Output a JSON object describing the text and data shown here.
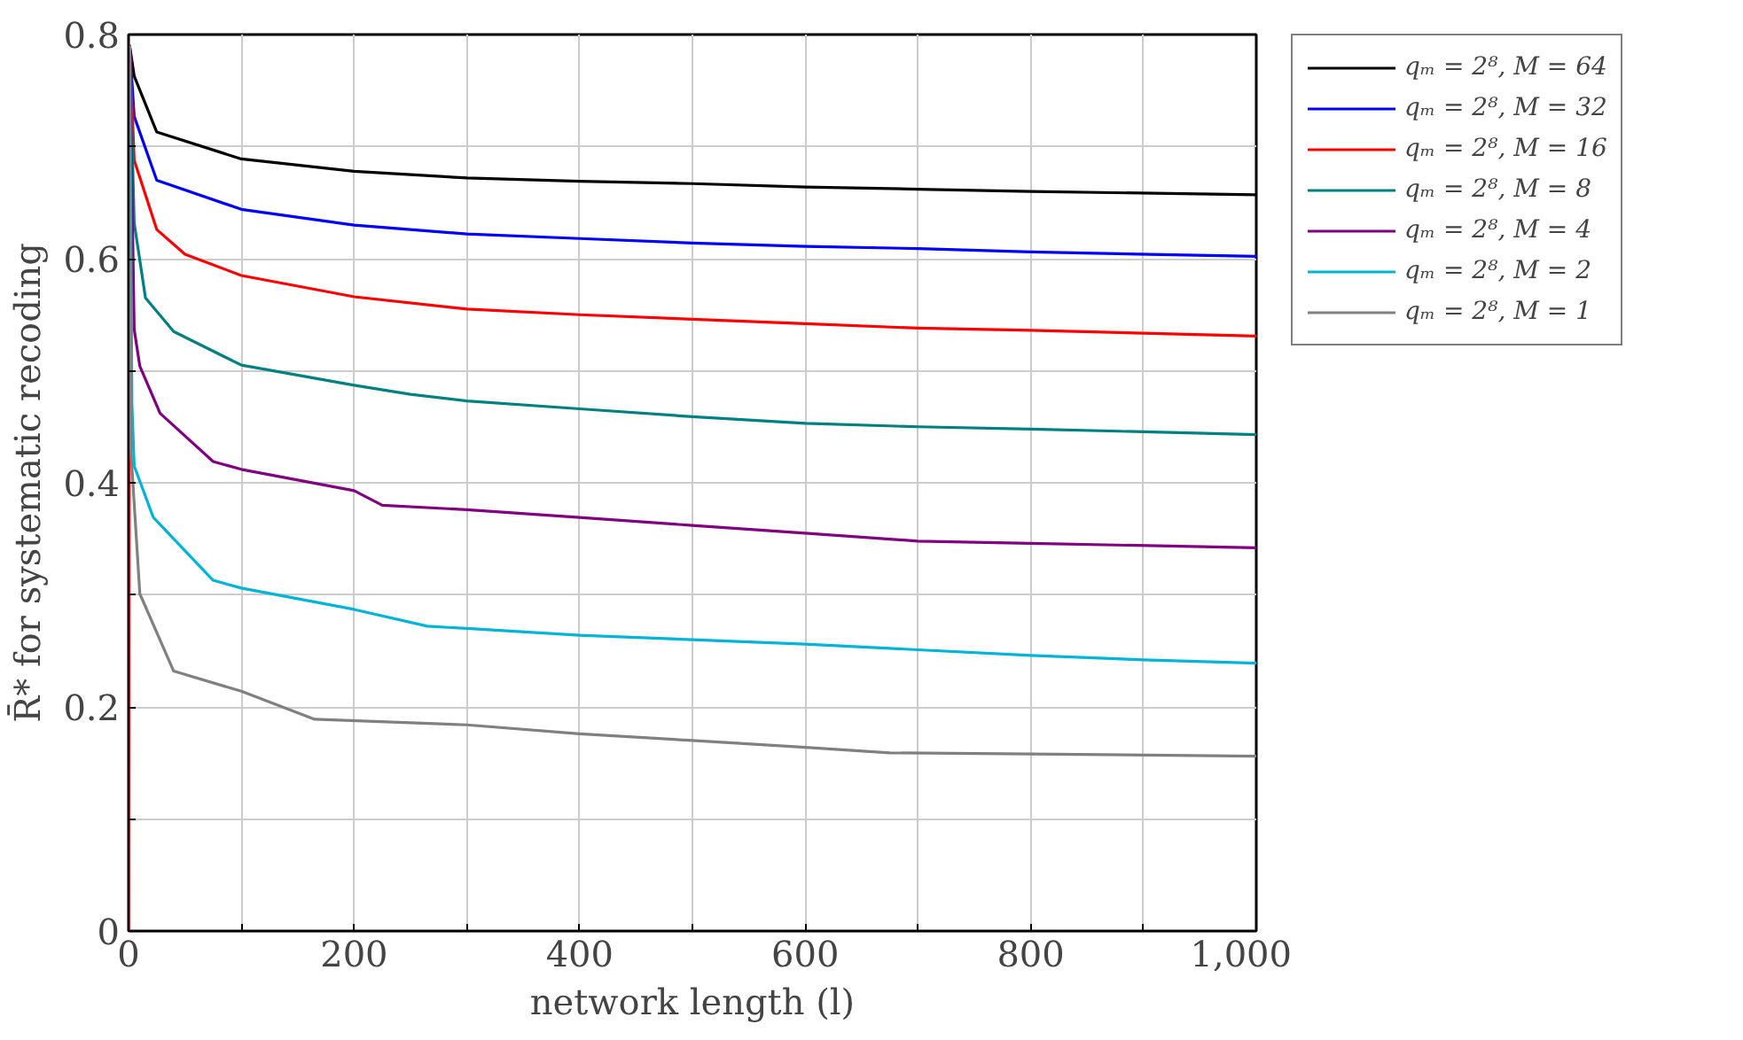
{
  "chart_data": {
    "type": "line",
    "xlabel": "network length (l)",
    "ylabel": "R̄* for systematic recoding",
    "xlim": [
      0,
      1000
    ],
    "ylim": [
      0,
      0.8
    ],
    "xticks": [
      0,
      {
        "value": 100,
        "label": null
      },
      200,
      {
        "value": 300,
        "label": null
      },
      400,
      {
        "value": 500,
        "label": null
      },
      600,
      {
        "value": 700,
        "label": null
      },
      800,
      {
        "value": 900,
        "label": null
      },
      {
        "value": 1000,
        "label": "1,000"
      }
    ],
    "yticks": [
      0,
      {
        "value": 0.1,
        "label": null
      },
      0.2,
      {
        "value": 0.3,
        "label": null
      },
      0.4,
      {
        "value": 0.5,
        "label": null
      },
      0.6,
      {
        "value": 0.7,
        "label": null
      },
      0.8
    ],
    "grid": true,
    "legend": "right",
    "marker": "none",
    "line_style": "solid",
    "series": [
      {
        "name": "qₘ = 2⁸, M = 64",
        "color": "#000000",
        "x": [
          1,
          5,
          25,
          100,
          200,
          300,
          400,
          500,
          600,
          700,
          800,
          1000
        ],
        "values": [
          0.79,
          0.763,
          0.713,
          0.689,
          0.678,
          0.672,
          0.669,
          0.667,
          0.664,
          0.662,
          0.66,
          0.657
        ]
      },
      {
        "name": "qₘ = 2⁸, M = 32",
        "color": "#0000ff",
        "x": [
          1,
          5,
          25,
          100,
          200,
          300,
          400,
          500,
          600,
          700,
          800,
          1000
        ],
        "values": [
          0.79,
          0.727,
          0.67,
          0.644,
          0.63,
          0.622,
          0.618,
          0.614,
          0.611,
          0.609,
          0.606,
          0.602
        ]
      },
      {
        "name": "qₘ = 2⁸, M = 16",
        "color": "#ff0000",
        "x": [
          0,
          1,
          5,
          25,
          50,
          100,
          200,
          300,
          400,
          600,
          700,
          800,
          1000
        ],
        "values": [
          0,
          0.79,
          0.688,
          0.626,
          0.604,
          0.585,
          0.566,
          0.555,
          0.55,
          0.542,
          0.538,
          0.536,
          0.531
        ]
      },
      {
        "name": "qₘ = 2⁸, M = 8",
        "color": "#008080",
        "x": [
          1,
          5,
          15,
          40,
          100,
          200,
          250,
          300,
          400,
          500,
          600,
          700,
          800,
          1000
        ],
        "values": [
          0.79,
          0.632,
          0.565,
          0.535,
          0.505,
          0.487,
          0.479,
          0.473,
          0.466,
          0.459,
          0.453,
          0.45,
          0.448,
          0.443
        ]
      },
      {
        "name": "qₘ = 2⁸, M = 4",
        "color": "#800080",
        "x": [
          1,
          5,
          10,
          28,
          75,
          100,
          200,
          225,
          300,
          400,
          500,
          600,
          700,
          800,
          1000
        ],
        "values": [
          0.79,
          0.537,
          0.504,
          0.462,
          0.419,
          0.412,
          0.393,
          0.38,
          0.376,
          0.369,
          0.362,
          0.355,
          0.348,
          0.346,
          0.342
        ]
      },
      {
        "name": "qₘ = 2⁸, M = 2",
        "color": "#00b4d8",
        "x": [
          1,
          3,
          5,
          22,
          75,
          100,
          200,
          265,
          300,
          400,
          500,
          600,
          700,
          800,
          900,
          1000
        ],
        "values": [
          0.79,
          0.47,
          0.415,
          0.369,
          0.313,
          0.306,
          0.287,
          0.272,
          0.27,
          0.264,
          0.26,
          0.256,
          0.251,
          0.246,
          0.242,
          0.239
        ]
      },
      {
        "name": "qₘ = 2⁸, M = 1",
        "color": "#808080",
        "x": [
          1,
          2,
          10,
          40,
          100,
          165,
          300,
          400,
          500,
          600,
          675,
          800,
          1000
        ],
        "values": [
          0.79,
          0.43,
          0.301,
          0.232,
          0.214,
          0.189,
          0.184,
          0.176,
          0.17,
          0.164,
          0.159,
          0.158,
          0.156
        ]
      }
    ]
  }
}
